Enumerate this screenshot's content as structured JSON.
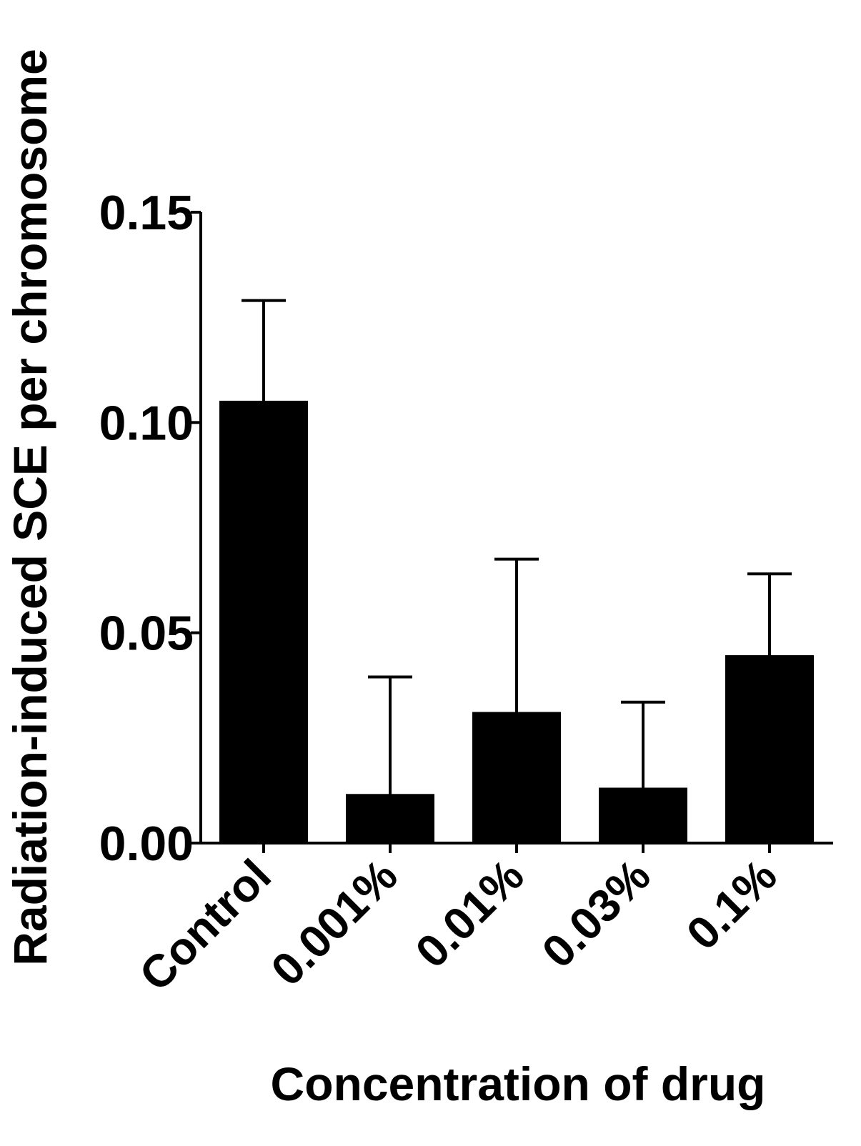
{
  "chart_data": {
    "type": "bar",
    "categories": [
      "Control",
      "0.001%",
      "0.01%",
      "0.03%",
      "0.1%"
    ],
    "values": [
      0.105,
      0.0115,
      0.031,
      0.013,
      0.0445
    ],
    "error_upper": [
      0.129,
      0.0395,
      0.0675,
      0.0335,
      0.064
    ],
    "ylim": [
      0,
      0.15
    ],
    "yticks": [
      "0.00",
      "0.05",
      "0.10",
      "0.15"
    ],
    "xlabel": "Concentration of drug",
    "ylabel": "Radiation-induced SCE per chromosome",
    "grid": false,
    "legend": "none",
    "colors": {
      "bar": "#000000",
      "axis": "#000000",
      "background": "#ffffff"
    }
  }
}
